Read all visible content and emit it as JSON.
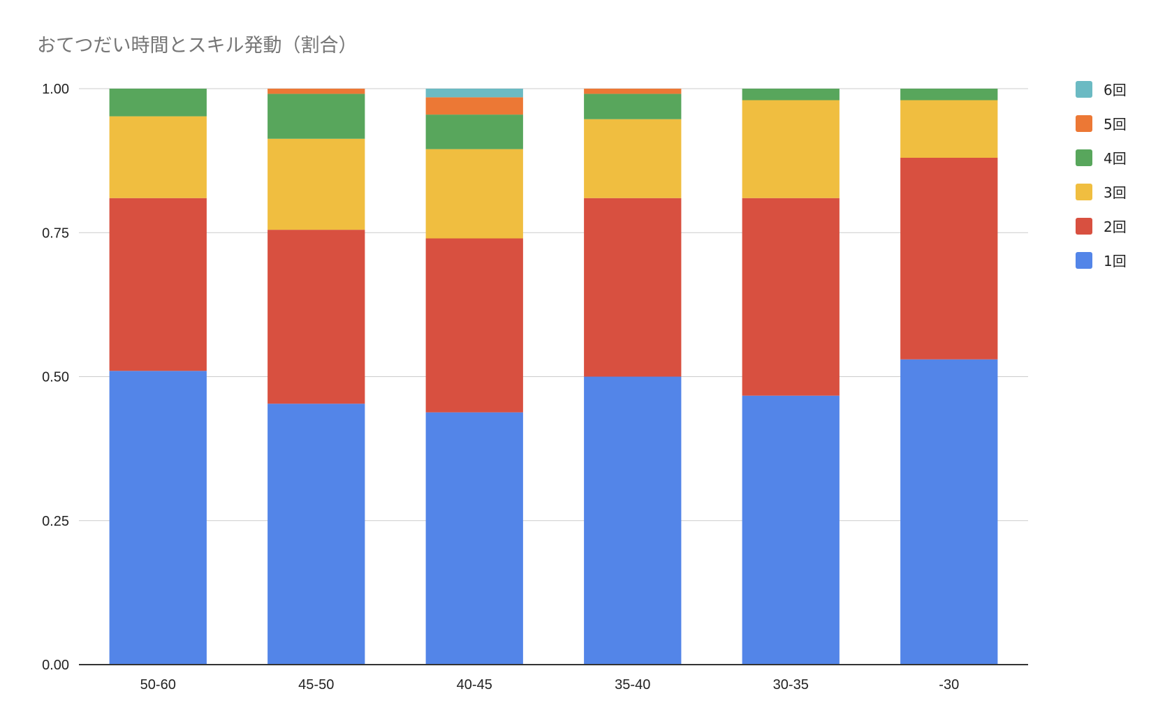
{
  "chart_data": {
    "type": "bar",
    "stacked": true,
    "title": "おてつだい時間とスキル発動（割合）",
    "xlabel": "",
    "ylabel": "",
    "ylim": [
      0,
      1
    ],
    "yticks": [
      "0.00",
      "0.25",
      "0.50",
      "0.75",
      "1.00"
    ],
    "ytick_values": [
      0,
      0.25,
      0.5,
      0.75,
      1.0
    ],
    "grid": true,
    "legend_position": "right",
    "categories": [
      "50-60",
      "45-50",
      "40-45",
      "35-40",
      "30-35",
      "-30"
    ],
    "series": [
      {
        "name": "1回",
        "color": "#5385e8",
        "values": [
          0.51,
          0.453,
          0.438,
          0.5,
          0.467,
          0.53
        ]
      },
      {
        "name": "2回",
        "color": "#d85040",
        "values": [
          0.3,
          0.302,
          0.302,
          0.31,
          0.343,
          0.35
        ]
      },
      {
        "name": "3回",
        "color": "#f0be40",
        "values": [
          0.142,
          0.158,
          0.155,
          0.137,
          0.17,
          0.1
        ]
      },
      {
        "name": "4回",
        "color": "#58a65c",
        "values": [
          0.048,
          0.078,
          0.06,
          0.044,
          0.02,
          0.02
        ]
      },
      {
        "name": "5回",
        "color": "#ec7835",
        "values": [
          0,
          0.009,
          0.03,
          0.009,
          0,
          0
        ]
      },
      {
        "name": "6回",
        "color": "#6bbac3",
        "values": [
          0,
          0,
          0.015,
          0,
          0,
          0
        ]
      }
    ]
  }
}
